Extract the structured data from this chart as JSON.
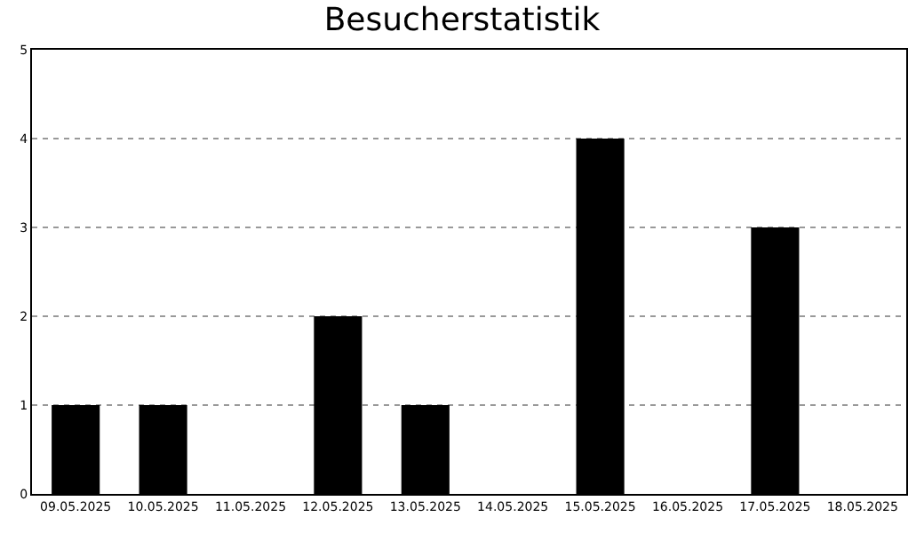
{
  "chart_data": {
    "type": "bar",
    "title": "Besucherstatistik",
    "categories": [
      "09.05.2025",
      "10.05.2025",
      "11.05.2025",
      "12.05.2025",
      "13.05.2025",
      "14.05.2025",
      "15.05.2025",
      "16.05.2025",
      "17.05.2025",
      "18.05.2025"
    ],
    "values": [
      1,
      1,
      0,
      2,
      1,
      0,
      4,
      0,
      3,
      0
    ],
    "color": "#000000",
    "ylim": [
      0,
      5
    ],
    "yticks": [
      0,
      1,
      2,
      3,
      4,
      5
    ],
    "grid": "y",
    "legend": false
  }
}
